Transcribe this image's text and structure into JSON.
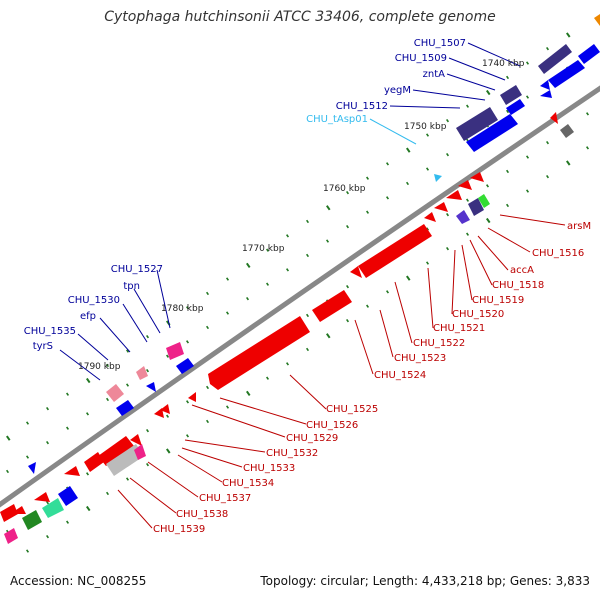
{
  "title": "Cytophaga hutchinsonii ATCC 33406, complete genome",
  "footer": {
    "accession": "Accession: NC_008255",
    "summary": "Topology: circular; Length: 4,433,218 bp; Genes: 3,833"
  },
  "colors": {
    "forward_cds": "#0000ee",
    "forward_dark": "#3a3080",
    "reverse_cds": "#ee0000",
    "trna": "#33bbee",
    "forward_label": "#000099",
    "reverse_label": "#bb0000",
    "backbone": "#888888",
    "ticks": "#227722"
  },
  "scale_labels": [
    "1740 kbp",
    "1750 kbp",
    "1760 kbp",
    "1770 kbp",
    "1780 kbp",
    "1790 kbp"
  ],
  "forward_labels": [
    "CHU_1507",
    "CHU_1509",
    "zntA",
    "yegM",
    "CHU_1512",
    "CHU_tAsp01",
    "CHU_1527",
    "tpn",
    "CHU_1530",
    "efp",
    "CHU_1535",
    "tyrS"
  ],
  "reverse_labels": [
    "arsM",
    "CHU_1516",
    "accA",
    "CHU_1518",
    "CHU_1519",
    "CHU_1520",
    "CHU_1521",
    "CHU_1522",
    "CHU_1523",
    "CHU_1524",
    "CHU_1525",
    "CHU_1526",
    "CHU_1529",
    "CHU_1532",
    "CHU_1533",
    "CHU_1534",
    "CHU_1537",
    "CHU_1538",
    "CHU_1539"
  ]
}
